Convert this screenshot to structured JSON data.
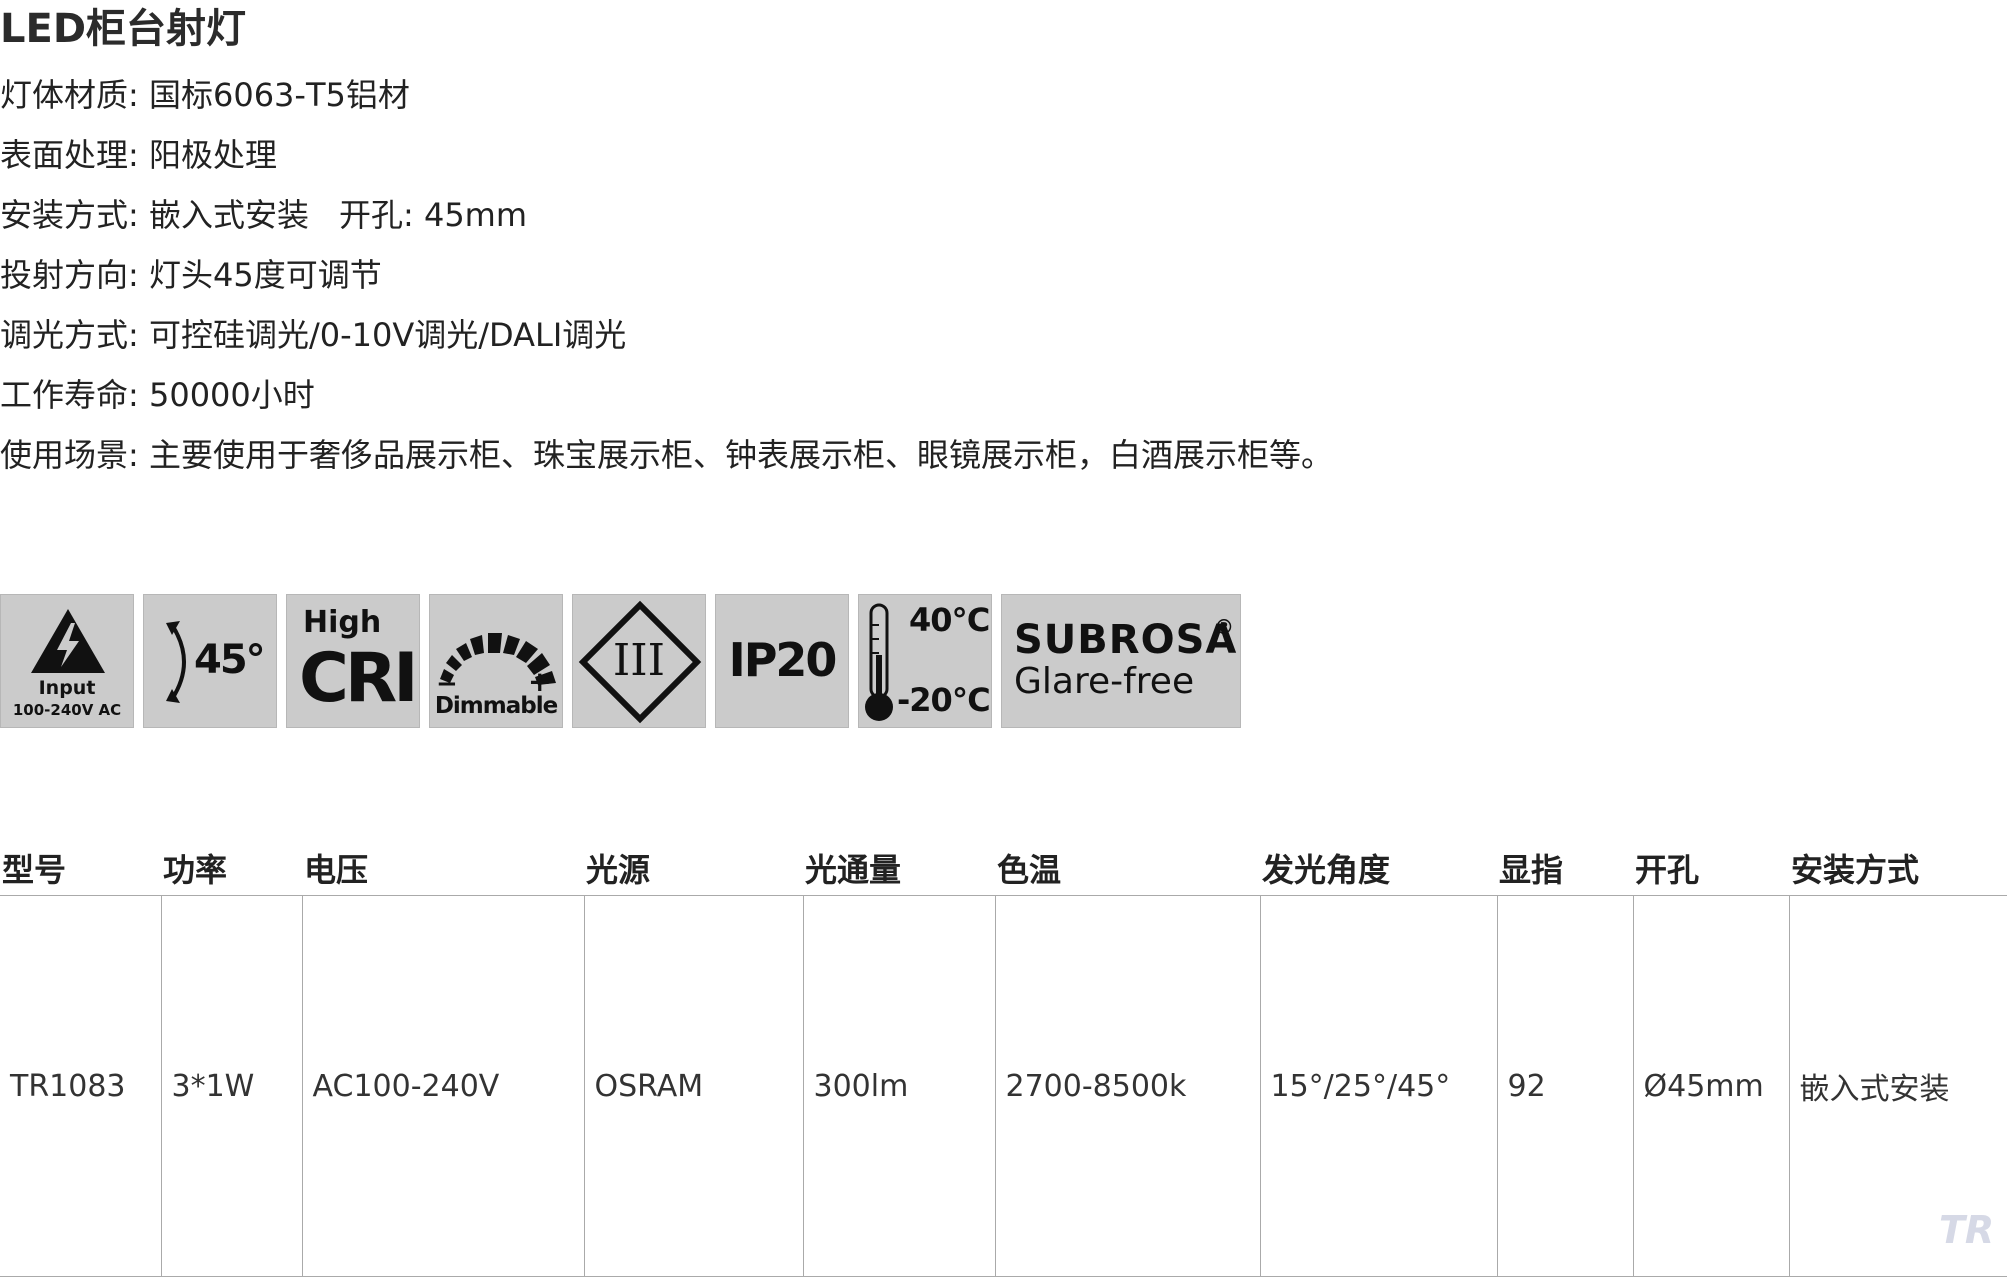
{
  "title": "LED柜台射灯",
  "specs": [
    {
      "label": "灯体材质:",
      "value": "国标6063-T5铝材"
    },
    {
      "label": "表面处理:",
      "value": "阳极处理"
    },
    {
      "label": "安装方式:",
      "value": "嵌入式安装",
      "extra_label": "开孔:",
      "extra_value": "45mm"
    },
    {
      "label": "投射方向:",
      "value": "灯头45度可调节"
    },
    {
      "label": "调光方式:",
      "value": "可控硅调光/0-10V调光/DALI调光"
    },
    {
      "label": "工作寿命:",
      "value": "50000小时"
    },
    {
      "label": "使用场景:",
      "value": "主要使用于奢侈品展示柜、珠宝展示柜、钟表展示柜、眼镜展示柜，白酒展示柜等。"
    }
  ],
  "icons": {
    "input": {
      "line1": "Input",
      "line2": "100-240V AC"
    },
    "angle": {
      "text": "45°"
    },
    "cri": {
      "line1": "High",
      "line2": "CRI"
    },
    "dimmable": {
      "text": "Dimmable",
      "minus": "−",
      "plus": "+"
    },
    "class3": {
      "text": "III"
    },
    "ip": {
      "text": "IP20"
    },
    "temperature": {
      "high": "40℃",
      "low": "-20℃"
    },
    "subrosa": {
      "line1": "SUBROSA",
      "reg": "®",
      "line2": "Glare-free"
    }
  },
  "table": {
    "headers": [
      "型号",
      "功率",
      "电压",
      "光源",
      "光通量",
      "色温",
      "发光角度",
      "显指",
      "开孔",
      "安装方式"
    ],
    "row": [
      "TR1083",
      "3*1W",
      "AC100-240V",
      "OSRAM",
      "300lm",
      "2700-8500k",
      "15°/25°/45°",
      "92",
      "Ø45mm",
      "嵌入式安装"
    ]
  },
  "watermark": "TRi",
  "colors": {
    "icon_bg": "#cbcbcb",
    "grid": "#aaaaaa",
    "text": "#222222"
  }
}
